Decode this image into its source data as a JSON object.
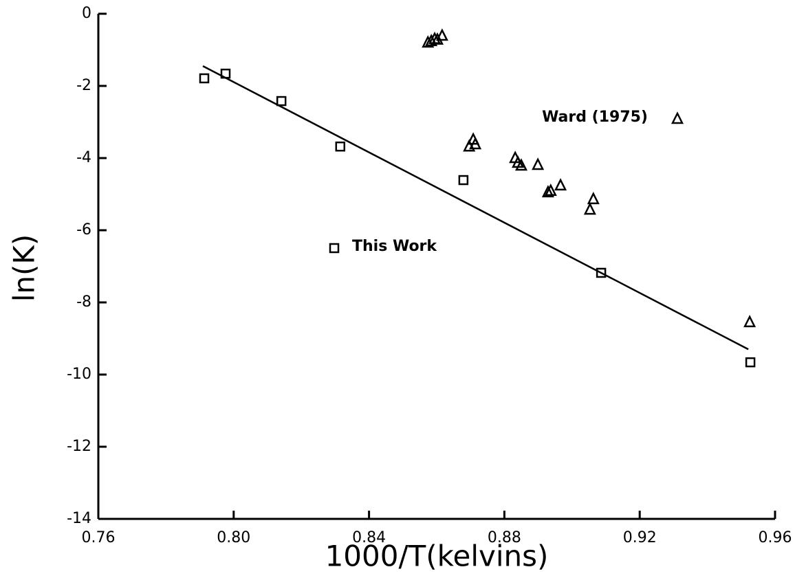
{
  "chart_data": {
    "type": "scatter",
    "x_label": "1000/T(kelvins)",
    "y_label": "ln(K)",
    "xlim": [
      0.76,
      0.96
    ],
    "ylim": [
      -14,
      0
    ],
    "xticks": [
      0.76,
      {
        "value": 0.8,
        "label": "0.80"
      },
      0.84,
      0.88,
      0.92,
      0.96
    ],
    "yticks": [
      0,
      -2,
      -4,
      -6,
      -8,
      -10,
      -12,
      -14
    ],
    "series": [
      {
        "name": "This Work",
        "marker": "square",
        "color": "#000000",
        "x": [
          0.7913,
          0.7976,
          0.8141,
          0.8315,
          0.8679,
          0.9086,
          0.9527
        ],
        "values": [
          -1.79,
          -1.66,
          -2.42,
          -3.68,
          -4.61,
          -7.18,
          -9.66
        ]
      },
      {
        "name": "Ward (1975)",
        "marker": "triangle",
        "color": "#000000",
        "x": [
          0.8574,
          0.8584,
          0.8594,
          0.8602,
          0.8616,
          0.8696,
          0.8708,
          0.8714,
          0.8832,
          0.884,
          0.885,
          0.8899,
          0.8929,
          0.8937,
          0.8966,
          0.9053,
          0.9063,
          0.9525
        ],
        "values": [
          -0.8,
          -0.76,
          -0.7,
          -0.72,
          -0.61,
          -3.68,
          -3.49,
          -3.62,
          -4.0,
          -4.13,
          -4.21,
          -4.19,
          -4.95,
          -4.91,
          -4.76,
          -5.43,
          -5.14,
          -8.55
        ]
      },
      {
        "marker": "line",
        "color": "#000000",
        "x": [
          0.7909,
          0.9521
        ],
        "values": [
          -1.45,
          -9.3
        ]
      }
    ]
  }
}
